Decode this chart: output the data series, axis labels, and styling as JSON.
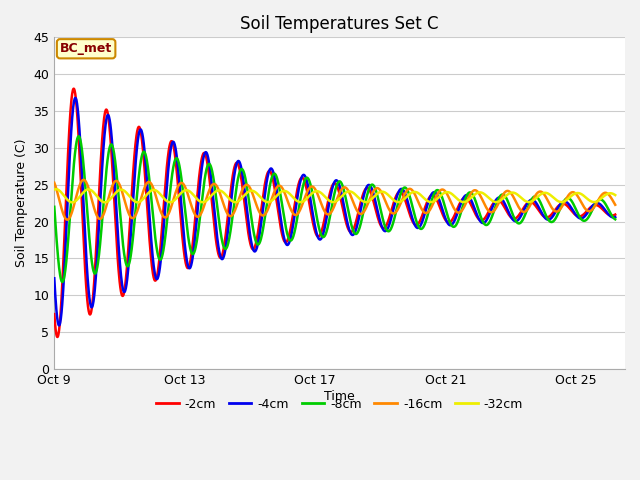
{
  "title": "Soil Temperatures Set C",
  "xlabel": "Time",
  "ylabel": "Soil Temperature (C)",
  "ylim": [
    0,
    45
  ],
  "yticks": [
    0,
    5,
    10,
    15,
    20,
    25,
    30,
    35,
    40,
    45
  ],
  "x_tick_positions": [
    0,
    4,
    8,
    12,
    16
  ],
  "x_tick_labels": [
    "Oct 9",
    "Oct 13",
    "Oct 17",
    "Oct 21",
    "Oct 25"
  ],
  "xlim": [
    0,
    17.5
  ],
  "fig_bg": "#f2f2f2",
  "plot_bg": "#ffffff",
  "annotation_text": "BC_met",
  "annotation_bg": "#ffffcc",
  "annotation_border": "#cc8800",
  "annotation_text_color": "#880000",
  "series": [
    {
      "label": "-2cm",
      "color": "#ff0000",
      "lw": 1.8
    },
    {
      "label": "-4cm",
      "color": "#0000ee",
      "lw": 1.8
    },
    {
      "label": "-8cm",
      "color": "#00cc00",
      "lw": 1.8
    },
    {
      "label": "-16cm",
      "color": "#ff8800",
      "lw": 1.8
    },
    {
      "label": "-32cm",
      "color": "#eeee00",
      "lw": 1.8
    }
  ],
  "depth_params": [
    {
      "mean": 22.0,
      "amplitude": 18.0,
      "phase": 0.35,
      "decay": 0.008,
      "mean_decay": 0.03
    },
    {
      "mean": 22.0,
      "amplitude": 16.5,
      "phase": 0.4,
      "decay": 0.007,
      "mean_decay": 0.03
    },
    {
      "mean": 22.0,
      "amplitude": 10.5,
      "phase": 0.5,
      "decay": 0.005,
      "mean_decay": 0.025
    },
    {
      "mean": 23.0,
      "amplitude": 2.8,
      "phase": 0.65,
      "decay": 0.002,
      "mean_decay": 0.02
    },
    {
      "mean": 23.5,
      "amplitude": 0.9,
      "phase": 0.8,
      "decay": 0.001,
      "mean_decay": 0.015
    }
  ]
}
